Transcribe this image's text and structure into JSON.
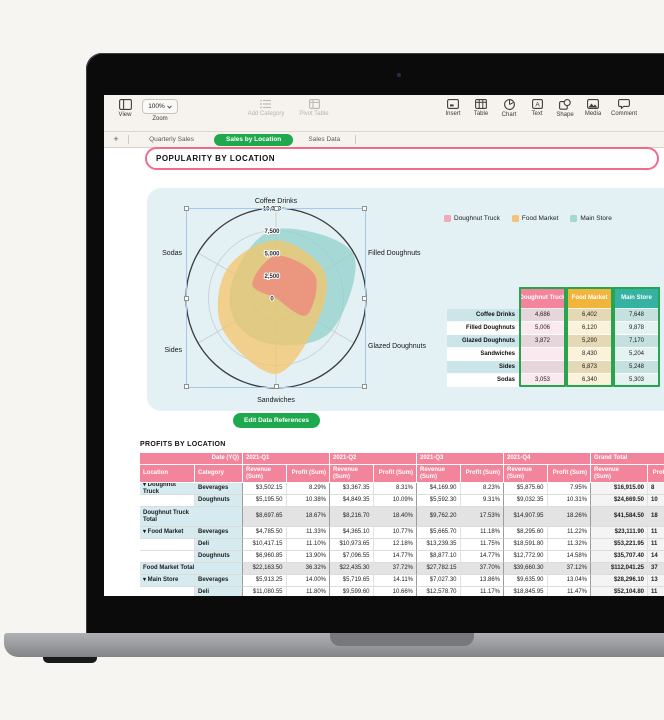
{
  "toolbar": {
    "view_label": "View",
    "zoom_value": "100%",
    "zoom_label": "Zoom",
    "add_category_label": "Add Category",
    "pivot_table_label": "Pivot Table",
    "insert_label": "Insert",
    "table_label": "Table",
    "chart_label": "Chart",
    "text_label": "Text",
    "shape_label": "Shape",
    "media_label": "Media",
    "comment_label": "Comment"
  },
  "tabs": {
    "add": "+",
    "items": [
      {
        "label": "Quarterly Sales",
        "active": false
      },
      {
        "label": "Sales by Location",
        "active": true
      },
      {
        "label": "Sales Data",
        "active": false
      }
    ]
  },
  "sheet": {
    "title": "POPULARITY BY LOCATION",
    "edit_button": "Edit Data References",
    "profits_title": "PROFITS BY LOCATION"
  },
  "chart_data": {
    "type": "radar",
    "categories": [
      "Coffee Drinks",
      "Filled Doughnuts",
      "Glazed Doughnuts",
      "Sandwiches",
      "Sides",
      "Sodas"
    ],
    "series": [
      {
        "name": "Doughnut Truck",
        "fill": "#ee8a80",
        "opacity": 0.8,
        "legend_color": "#f0a9b6",
        "values": [
          4686,
          5006,
          3872,
          null,
          null,
          3053
        ]
      },
      {
        "name": "Food Market",
        "fill": "#f4c468",
        "opacity": 0.75,
        "legend_color": "#f2c379",
        "values": [
          6402,
          6120,
          5290,
          8430,
          6873,
          6340
        ]
      },
      {
        "name": "Main Store",
        "fill": "#8fd0ca",
        "opacity": 0.72,
        "legend_color": "#a5d8d3",
        "values": [
          7648,
          9878,
          7170,
          5204,
          5248,
          5303
        ]
      }
    ],
    "rmax": 10000,
    "tick_labels": [
      "10,000",
      "7,500",
      "5,000",
      "2,500",
      "0"
    ],
    "grid": true,
    "legend_position": "top-right"
  },
  "mini_table": {
    "headers": [
      "Doughnut Truck",
      "Food Market",
      "Main Store"
    ],
    "header_colors": [
      "#f2849b",
      "#f1b53e",
      "#35b2a1"
    ],
    "rows": [
      {
        "label": "Coffee Drinks",
        "values": [
          "4,686",
          "6,402",
          "7,648"
        ]
      },
      {
        "label": "Filled Doughnuts",
        "values": [
          "5,006",
          "6,120",
          "9,878"
        ]
      },
      {
        "label": "Glazed Doughnuts",
        "values": [
          "3,872",
          "5,290",
          "7,170"
        ]
      },
      {
        "label": "Sandwiches",
        "values": [
          "",
          "8,430",
          "5,204"
        ]
      },
      {
        "label": "Sides",
        "values": [
          "",
          "6,873",
          "5,248"
        ]
      },
      {
        "label": "Sodas",
        "values": [
          "3,053",
          "6,340",
          "5,303"
        ]
      }
    ]
  },
  "profits_table": {
    "date_label": "Date (YQ)",
    "col_groups": [
      "2021-Q1",
      "2021-Q2",
      "2021-Q3",
      "2021-Q4",
      "Grand Total"
    ],
    "location_header": "Location",
    "category_header": "Category",
    "revenue_header": "Revenue (Sum)",
    "profit_header": "Profit (Sum)",
    "rows": [
      {
        "loc": "Doughnut Truck",
        "disclosure": true,
        "cat": "Beverages",
        "total": false,
        "v": [
          "$3,502.15",
          "8.29%",
          "$3,367.35",
          "8.31%",
          "$4,169.90",
          "8.23%",
          "$5,875.60",
          "7.95%",
          "$16,915.00",
          "8"
        ]
      },
      {
        "loc": "",
        "disclosure": false,
        "cat": "Doughnuts",
        "total": false,
        "v": [
          "$5,195.50",
          "10.38%",
          "$4,849.35",
          "10.09%",
          "$5,592.30",
          "9.31%",
          "$9,032.35",
          "10.31%",
          "$24,669.50",
          "10"
        ]
      },
      {
        "loc": "Doughnut Truck\nTotal",
        "disclosure": false,
        "cat": "",
        "total": true,
        "tall": true,
        "v": [
          "$8,697.65",
          "18.67%",
          "$8,216.70",
          "18.40%",
          "$9,762.20",
          "17.53%",
          "$14,907.95",
          "18.26%",
          "$41,584.50",
          "18"
        ]
      },
      {
        "loc": "Food Market",
        "disclosure": true,
        "cat": "Beverages",
        "total": false,
        "v": [
          "$4,785.50",
          "11.33%",
          "$4,365.10",
          "10.77%",
          "$5,665.70",
          "11.18%",
          "$8,295.60",
          "11.22%",
          "$23,111.90",
          "11"
        ]
      },
      {
        "loc": "",
        "disclosure": false,
        "cat": "Deli",
        "total": false,
        "v": [
          "$10,417.15",
          "11.10%",
          "$10,973.65",
          "12.18%",
          "$13,239.35",
          "11.75%",
          "$18,591.80",
          "11.32%",
          "$53,221.95",
          "11"
        ]
      },
      {
        "loc": "",
        "disclosure": false,
        "cat": "Doughnuts",
        "total": false,
        "v": [
          "$6,960.85",
          "13.90%",
          "$7,096.55",
          "14.77%",
          "$8,877.10",
          "14.77%",
          "$12,772.90",
          "14.58%",
          "$35,707.40",
          "14"
        ]
      },
      {
        "loc": "Food Market Total",
        "disclosure": false,
        "cat": "",
        "total": true,
        "v": [
          "$22,163.50",
          "36.32%",
          "$22,435.30",
          "37.72%",
          "$27,782.15",
          "37.70%",
          "$39,660.30",
          "37.12%",
          "$112,041.25",
          "37"
        ]
      },
      {
        "loc": "Main Store",
        "disclosure": true,
        "cat": "Beverages",
        "total": false,
        "v": [
          "$5,913.25",
          "14.00%",
          "$5,719.65",
          "14.11%",
          "$7,027.30",
          "13.86%",
          "$9,635.90",
          "13.04%",
          "$28,296.10",
          "13"
        ]
      },
      {
        "loc": "",
        "disclosure": false,
        "cat": "Deli",
        "total": false,
        "v": [
          "$11,080.55",
          "11.80%",
          "$9,599.60",
          "10.66%",
          "$12,578.70",
          "11.17%",
          "$18,845.95",
          "11.47%",
          "$52,104.80",
          "11"
        ]
      }
    ]
  }
}
